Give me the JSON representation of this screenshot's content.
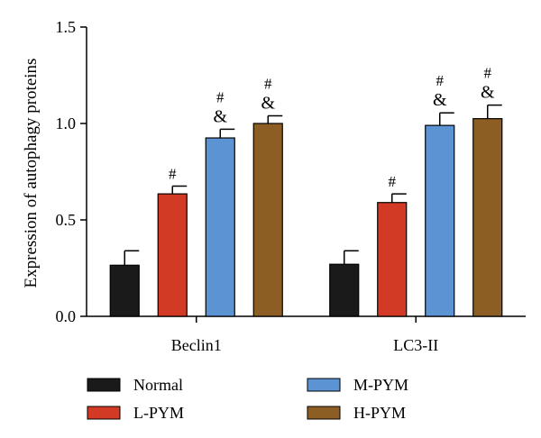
{
  "chart_data": {
    "type": "bar",
    "title": "",
    "xlabel": "",
    "ylabel": "Expression of autophagy proteins",
    "ylim": [
      0,
      1.5
    ],
    "yticks": [
      "0.0",
      "0.5",
      "1.0",
      "1.5"
    ],
    "categories": [
      "Beclin1",
      "LC3-II"
    ],
    "series": [
      {
        "name": "Normal",
        "color": "#1a1a1a",
        "values": [
          0.265,
          0.27
        ],
        "errors": [
          0.075,
          0.07
        ],
        "marks": [
          [],
          []
        ]
      },
      {
        "name": "L-PYM",
        "color": "#d23a25",
        "values": [
          0.635,
          0.59
        ],
        "errors": [
          0.04,
          0.045
        ],
        "marks": [
          [
            "#"
          ],
          [
            "#"
          ]
        ]
      },
      {
        "name": "M-PYM",
        "color": "#5b93d3",
        "values": [
          0.925,
          0.99
        ],
        "errors": [
          0.045,
          0.065
        ],
        "marks": [
          [
            "#",
            "&"
          ],
          [
            "#",
            "&"
          ]
        ]
      },
      {
        "name": "H-PYM",
        "color": "#8d5e23",
        "values": [
          1.0,
          1.025
        ],
        "errors": [
          0.04,
          0.07
        ],
        "marks": [
          [
            "#",
            "&"
          ],
          [
            "#",
            "&"
          ]
        ]
      }
    ],
    "grid": false,
    "legend_position": "bottom"
  }
}
